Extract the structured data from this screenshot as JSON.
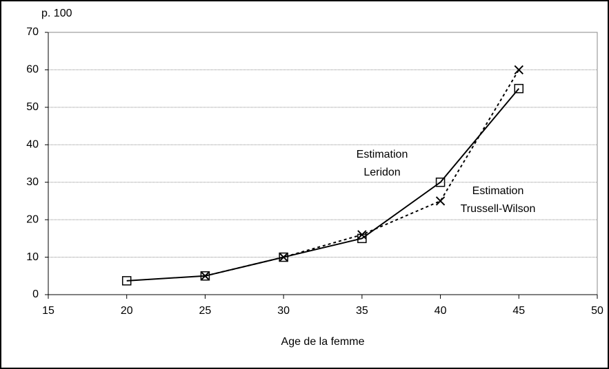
{
  "chart_data": {
    "type": "line",
    "y_unit_label": "p. 100",
    "x_label": "Age de la femme",
    "x": [
      20,
      25,
      30,
      35,
      40,
      45
    ],
    "series": [
      {
        "color": "#000000",
        "dash": "solid",
        "marker": "square",
        "values": [
          3.7,
          5,
          10,
          15,
          30,
          55
        ]
      },
      {
        "color": "#000000",
        "dash": "dotted",
        "marker": "cross",
        "values": [
          null,
          5,
          10,
          16,
          25,
          60
        ]
      }
    ],
    "annotations": [
      {
        "lines": [
          "Estimation",
          "Leridon"
        ]
      },
      {
        "lines": [
          "Estimation",
          "Trussell-Wilson"
        ]
      }
    ],
    "xlim": [
      15,
      50
    ],
    "xticks": [
      15,
      20,
      25,
      30,
      35,
      40,
      45,
      50
    ],
    "ylim": [
      0,
      70
    ],
    "yticks": [
      0,
      10,
      20,
      30,
      40,
      50,
      60,
      70
    ],
    "grid": true
  }
}
